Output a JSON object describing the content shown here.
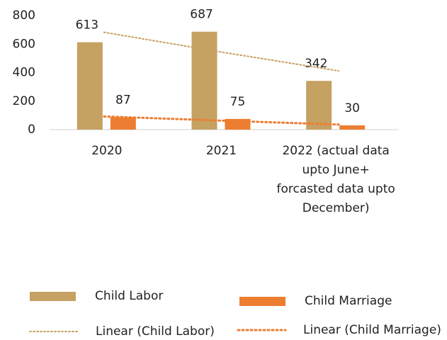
{
  "chart_data": {
    "type": "bar",
    "categories": [
      "2020",
      "2021",
      "2022 (actual data upto June+ forcasted data upto December)"
    ],
    "series": [
      {
        "name": "Child Labor",
        "color": "#c5a162",
        "values": [
          613,
          687,
          342
        ]
      },
      {
        "name": "Child Marriage",
        "color": "#ed7d31",
        "values": [
          87,
          75,
          30
        ]
      }
    ],
    "trendlines": [
      {
        "name": "Linear (Child Labor)",
        "color": "#c5a162",
        "values": [
          682.8,
          547.3,
          411.8
        ]
      },
      {
        "name": "Linear (Child Marriage)",
        "color": "#ed7d31",
        "values": [
          92.5,
          64,
          35.5
        ]
      }
    ],
    "ylim": [
      0,
      800
    ],
    "yticks": [
      0,
      200,
      400,
      600,
      800
    ],
    "grid": false,
    "legend": "bottom"
  }
}
